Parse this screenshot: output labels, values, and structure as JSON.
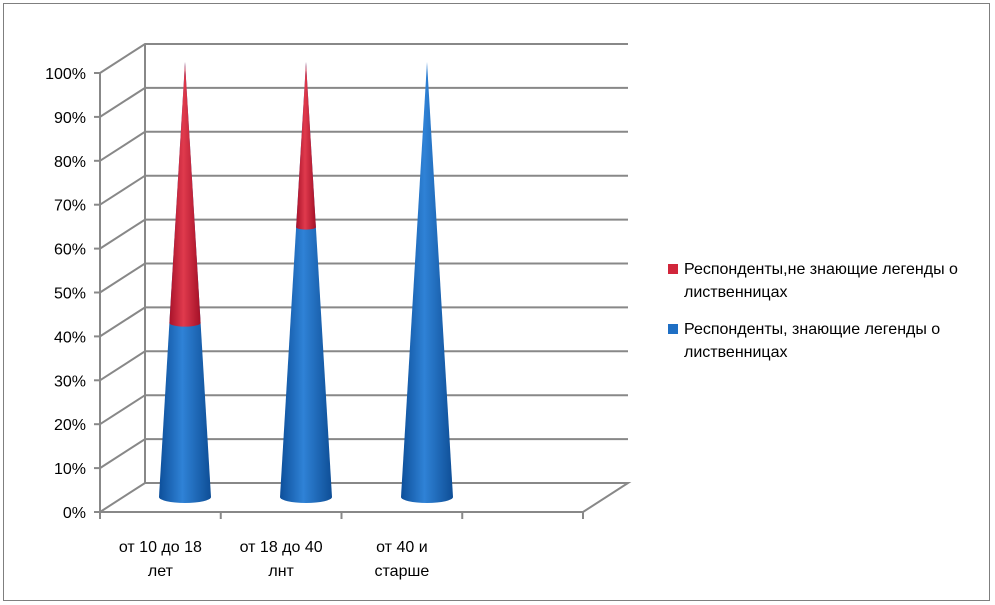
{
  "chart_data": {
    "type": "bar",
    "shape": "3d-cone-stacked-percent",
    "categories": [
      [
        "от 10 до 18",
        "лет"
      ],
      [
        "от 18 до 40",
        "лнт"
      ],
      [
        "от 40 и",
        "старше"
      ]
    ],
    "series": [
      {
        "name": "Респонденты, знающие легенды о лиственницах",
        "values": [
          40,
          62,
          100
        ],
        "color": "#1f6fc4"
      },
      {
        "name": "Респонденты,не знающие легенды о лиственницах",
        "values": [
          60,
          38,
          0
        ],
        "color": "#d1263b"
      }
    ],
    "y_ticks": [
      "0%",
      "10%",
      "20%",
      "30%",
      "40%",
      "50%",
      "60%",
      "70%",
      "80%",
      "90%",
      "100%"
    ],
    "ylim": [
      0,
      100
    ],
    "grid": true,
    "legend_position": "right",
    "legend_order": [
      1,
      0
    ]
  }
}
